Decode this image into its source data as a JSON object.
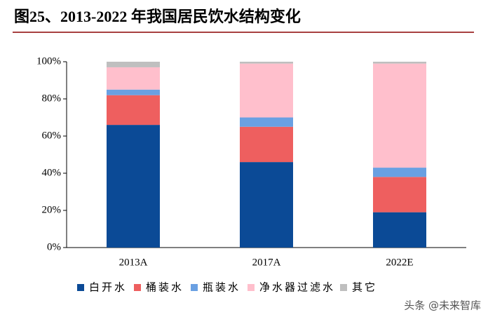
{
  "chart_data": {
    "type": "stacked-bar",
    "title": "图25、2013-2022 年我国居民饮水结构变化",
    "categories": [
      "2013A",
      "2017A",
      "2022E"
    ],
    "series": [
      {
        "name": "白开水",
        "color": "#0b4a96",
        "values": [
          66,
          46,
          19
        ]
      },
      {
        "name": "桶装水",
        "color": "#ee5f5f",
        "values": [
          16,
          19,
          19
        ]
      },
      {
        "name": "瓶装水",
        "color": "#6aa0e2",
        "values": [
          3,
          5,
          5
        ]
      },
      {
        "name": "净水器过滤水",
        "color": "#ffbfcc",
        "values": [
          12,
          29,
          56
        ]
      },
      {
        "name": "其它",
        "color": "#bfbfbf",
        "values": [
          3,
          1,
          1
        ]
      }
    ],
    "ylim": [
      0,
      100
    ],
    "yticks": [
      {
        "value": 0,
        "label": "0%"
      },
      {
        "value": 20,
        "label": "20%"
      },
      {
        "value": 40,
        "label": "40%"
      },
      {
        "value": 60,
        "label": "60%"
      },
      {
        "value": 80,
        "label": "80%"
      },
      {
        "value": 100,
        "label": "100%"
      }
    ]
  },
  "watermark": "头条 @未来智库"
}
